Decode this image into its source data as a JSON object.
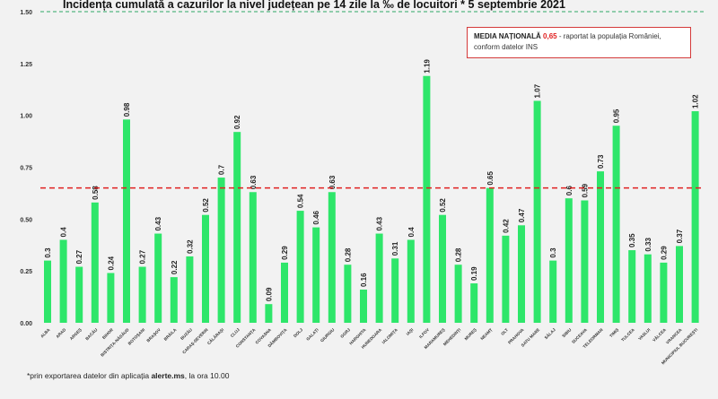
{
  "chart_data": {
    "type": "bar",
    "title": "Incidența cumulată a cazurilor la nivel județean pe 14 zile la ‰ de locuitori * 5 septembrie 2021",
    "ylim": [
      0,
      1.5
    ],
    "yticks": [
      "0.00",
      "0.25",
      "0.50",
      "0.75",
      "1.00",
      "1.25",
      "1.50"
    ],
    "grid": false,
    "bar_color": "#2ee66a",
    "reference_line": {
      "value": 0.65,
      "color": "#e02020",
      "style": "dashed"
    },
    "top_line": {
      "value": 1.5,
      "color": "#2fa866",
      "style": "dashed"
    },
    "categories": [
      "ALBA",
      "ARAD",
      "ARGEȘ",
      "BACĂU",
      "BIHOR",
      "BISTRIȚA-NĂSĂUD",
      "BOTOȘANI",
      "BRAȘOV",
      "BRĂILA",
      "BUZĂU",
      "CARAȘ-SEVERIN",
      "CĂLĂRAȘI",
      "CLUJ",
      "CONSTANȚA",
      "COVASNA",
      "DÂMBOVIȚA",
      "DOLJ",
      "GALAȚI",
      "GIURGIU",
      "GORJ",
      "HARGHITA",
      "HUNEDOARA",
      "IALOMIȚA",
      "IAȘI",
      "ILFOV",
      "MARAMUREȘ",
      "MEHEDINȚI",
      "MUREȘ",
      "NEAMȚ",
      "OLT",
      "PRAHOVA",
      "SATU MARE",
      "SĂLAJ",
      "SIBIU",
      "SUCEAVA",
      "TELEORMAN",
      "TIMIȘ",
      "TULCEA",
      "VASLUI",
      "VÂLCEA",
      "VRANCEA",
      "MUNICIPIUL BUCUREȘTI"
    ],
    "values": [
      0.3,
      0.4,
      0.27,
      0.58,
      0.24,
      0.98,
      0.27,
      0.43,
      0.22,
      0.32,
      0.52,
      0.7,
      0.92,
      0.63,
      0.09,
      0.29,
      0.54,
      0.46,
      0.63,
      0.28,
      0.16,
      0.43,
      0.31,
      0.4,
      1.19,
      0.52,
      0.28,
      0.19,
      0.65,
      0.42,
      0.47,
      1.07,
      0.3,
      0.6,
      0.59,
      0.73,
      0.95,
      0.35,
      0.33,
      0.29,
      0.37,
      1.02
    ],
    "value_labels": [
      "0.3",
      "0.4",
      "0.27",
      "0.58",
      "0.24",
      "0.98",
      "0.27",
      "0.43",
      "0.22",
      "0.32",
      "0.52",
      "0.7",
      "0.92",
      "0.63",
      "0.09",
      "0.29",
      "0.54",
      "0.46",
      "0.63",
      "0.28",
      "0.16",
      "0.43",
      "0.31",
      "0.4",
      "1.19",
      "0.52",
      "0.28",
      "0.19",
      "0.65",
      "0.42",
      "0.47",
      "1.07",
      "0.3",
      "0.6",
      "0.59",
      "0.73",
      "0.95",
      "0.35",
      "0.33",
      "0.29",
      "0.37",
      "1.02"
    ]
  },
  "legend": {
    "label": "MEDIA NAȚIONALĂ",
    "value": "0,65",
    "rest": " - raportat la populația României,",
    "line2": "conform datelor INS"
  },
  "footnote": {
    "prefix": "*prin exportarea datelor din aplicația ",
    "app": "alerte.ms",
    "suffix": ", la ora 10.00"
  }
}
